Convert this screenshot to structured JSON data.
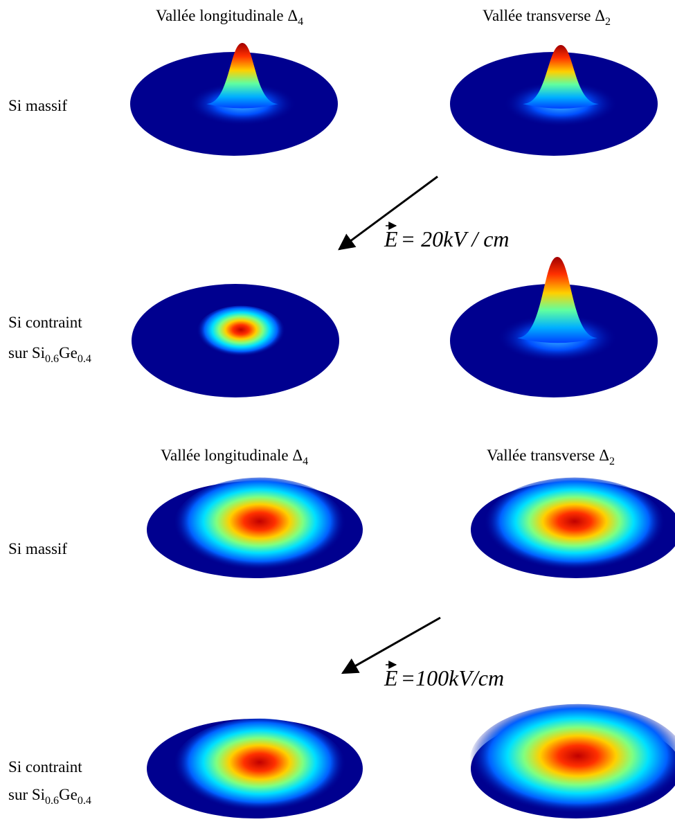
{
  "panels": [
    {
      "headers": [
        {
          "text": "Vallée longitudinale Δ",
          "sub": "4"
        },
        {
          "text": "Vallée transverse Δ",
          "sub": "2"
        }
      ],
      "rows": [
        {
          "label": "Si massif"
        },
        {
          "label": "Si contraint",
          "label2": "sur Si",
          "sub1": "0.6",
          "mid": "Ge",
          "sub2": "0.4"
        }
      ],
      "field": {
        "symbol": "E",
        "text": "= 20kV / cm"
      }
    },
    {
      "headers": [
        {
          "text": "Vallée longitudinale Δ",
          "sub": "4"
        },
        {
          "text": "Vallée transverse Δ",
          "sub": "2"
        }
      ],
      "rows": [
        {
          "label": "Si massif"
        },
        {
          "label": "Si contraint",
          "label2": "sur Si",
          "sub1": "0.6",
          "mid": "Ge",
          "sub2": "0.4"
        }
      ],
      "field": {
        "symbol": "E",
        "text": "=100kV/cm"
      }
    }
  ]
}
